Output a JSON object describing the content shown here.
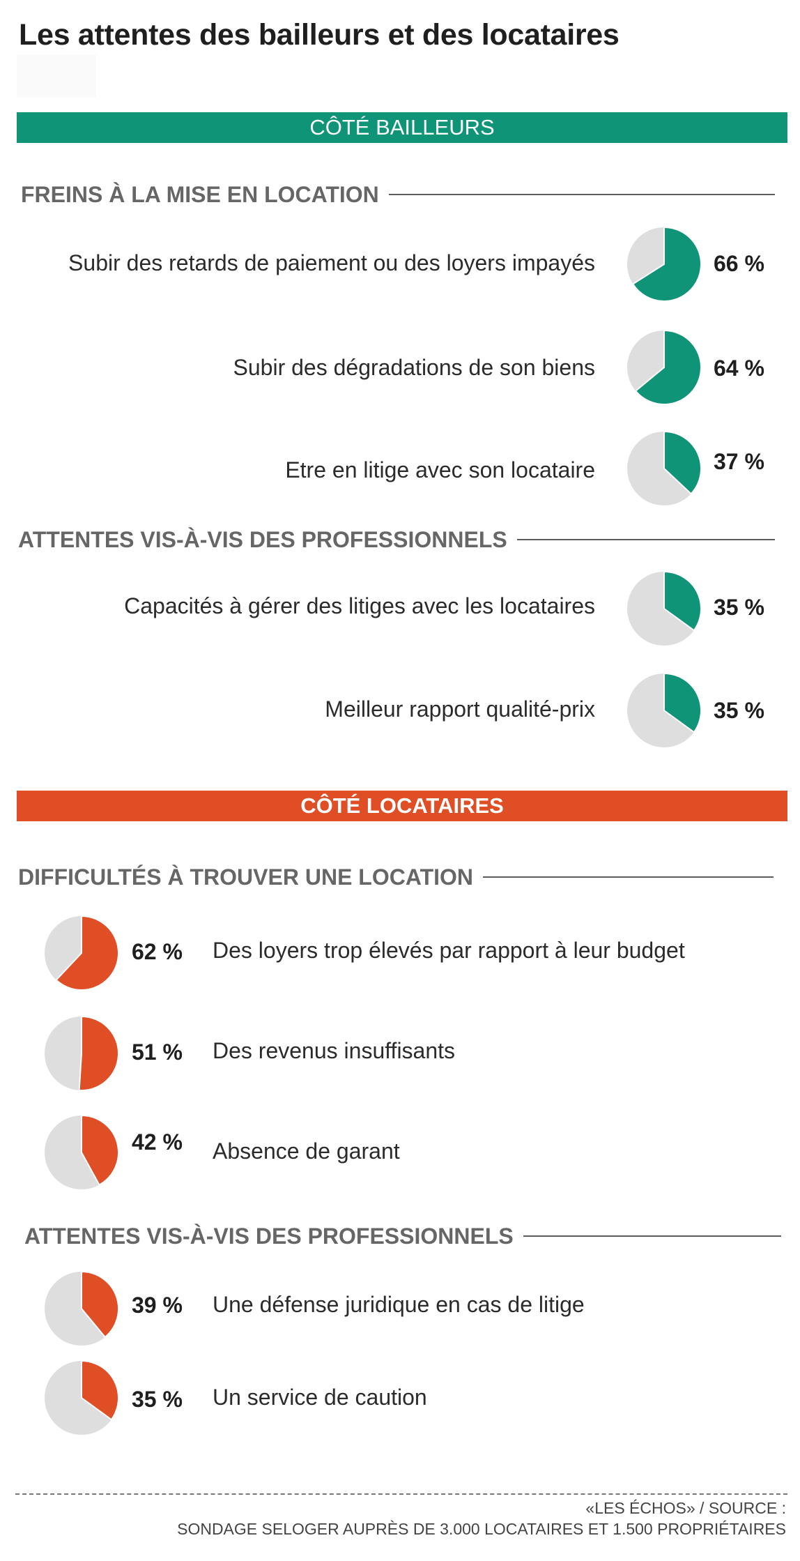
{
  "title": "Les attentes des bailleurs et des locataires",
  "colors": {
    "teal": "#0f9478",
    "orange": "#e04e26",
    "pie_background": "#dedede",
    "section_title": "#666666"
  },
  "bailleurs": {
    "banner": "CÔTÉ BAILLEURS",
    "sections": [
      {
        "heading": "FREINS À LA MISE EN LOCATION",
        "items": [
          {
            "label": "Subir des retards de paiement ou des loyers impayés",
            "value": 66,
            "value_label": "66 %"
          },
          {
            "label": "Subir des dégradations de son biens",
            "value": 64,
            "value_label": "64 %"
          },
          {
            "label": "Etre en litige avec son locataire",
            "value": 37,
            "value_label": "37 %"
          }
        ]
      },
      {
        "heading": "ATTENTES VIS-À-VIS DES PROFESSIONNELS",
        "items": [
          {
            "label": "Capacités à gérer des litiges avec les locataires",
            "value": 35,
            "value_label": "35 %"
          },
          {
            "label": "Meilleur rapport qualité-prix",
            "value": 35,
            "value_label": "35 %"
          }
        ]
      }
    ]
  },
  "locataires": {
    "banner": "CÔTÉ LOCATAIRES",
    "sections": [
      {
        "heading": "DIFFICULTÉS À TROUVER UNE LOCATION",
        "items": [
          {
            "label": "Des loyers trop élevés par rapport à leur budget",
            "value": 62,
            "value_label": "62 %"
          },
          {
            "label": "Des revenus insuffisants",
            "value": 51,
            "value_label": "51 %"
          },
          {
            "label": "Absence de garant",
            "value": 42,
            "value_label": "42 %"
          }
        ]
      },
      {
        "heading": "ATTENTES VIS-À-VIS DES PROFESSIONNELS",
        "items": [
          {
            "label": "Une défense juridique en cas de litige",
            "value": 39,
            "value_label": "39 %"
          },
          {
            "label": "Un service de caution",
            "value": 35,
            "value_label": "35 %"
          }
        ]
      }
    ]
  },
  "footer": {
    "line1": "«LES ÉCHOS»  / SOURCE :",
    "line2": "SONDAGE SELOGER AUPRÈS DE 3.000 LOCATAIRES ET 1.500 PROPRIÉTAIRES"
  },
  "chart_data": [
    {
      "type": "pie",
      "title": "FREINS À LA MISE EN LOCATION",
      "categories": [
        "Subir des retards de paiement ou des loyers impayés",
        "Subir des dégradations de son biens",
        "Etre en litige avec son locataire"
      ],
      "values": [
        66,
        64,
        37
      ],
      "unit": "%"
    },
    {
      "type": "pie",
      "title": "ATTENTES VIS-À-VIS DES PROFESSIONNELS",
      "categories": [
        "Capacités à gérer des litiges avec les locataires",
        "Meilleur rapport qualité-prix"
      ],
      "values": [
        35,
        35
      ],
      "unit": "%"
    },
    {
      "type": "pie",
      "title": "DIFFICULTÉS À TROUVER UNE LOCATION",
      "categories": [
        "Des loyers trop élevés par rapport à leur budget",
        "Des revenus insuffisants",
        "Absence de garant"
      ],
      "values": [
        62,
        51,
        42
      ],
      "unit": "%"
    },
    {
      "type": "pie",
      "title": "ATTENTES VIS-À-VIS DES PROFESSIONNELS",
      "categories": [
        "Une défense juridique en cas de litige",
        "Un service de caution"
      ],
      "values": [
        39,
        35
      ],
      "unit": "%"
    }
  ]
}
